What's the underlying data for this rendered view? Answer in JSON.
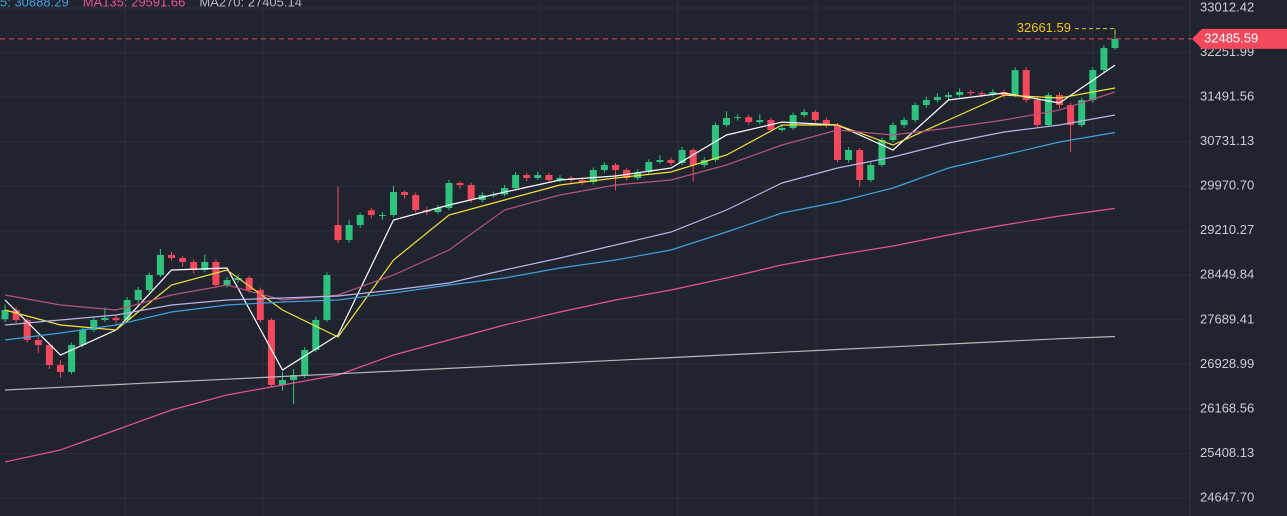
{
  "chart_data": {
    "type": "candlestick",
    "ylim": [
      24340,
      33150
    ],
    "yticks": [
      33012.42,
      32251.99,
      31491.56,
      30731.13,
      {
        "value": 29970.7,
        "label": "29970.70"
      },
      29210.27,
      28449.84,
      27689.41,
      26928.99,
      26168.56,
      25408.13,
      {
        "value": 24647.7,
        "label": "24647.70"
      }
    ],
    "grid": true,
    "up_color": "#2ec27e",
    "down_color": "#f4485c",
    "open": [
      27700,
      27857,
      27687,
      27345,
      27260,
      26918,
      26799,
      27260,
      27516,
      27687,
      27721,
      27687,
      28028,
      28199,
      28455,
      28797,
      28745,
      28677,
      28540,
      28677,
      28284,
      28369,
      28403,
      28199,
      27687,
      26577,
      26662,
      26747,
      27175,
      27687,
      29308,
      29052,
      29308,
      29560,
      29479,
      29479,
      29871,
      29820,
      29564,
      29530,
      29599,
      30025,
      29991,
      29735,
      29820,
      29830,
      29940,
      30162,
      30111,
      30162,
      30076,
      30111,
      30076,
      30042,
      30247,
      30333,
      30247,
      30111,
      30213,
      30384,
      30418,
      30367,
      30589,
      30333,
      30418,
      31015,
      31135,
      31150,
      31066,
      31101,
      30930,
      30964,
      31186,
      31237,
      31101,
      31015,
      30418,
      30589,
      30076,
      30333,
      30759,
      31015,
      31101,
      31357,
      31442,
      31493,
      31527,
      31579,
      31560,
      31540,
      31579,
      31527,
      31954,
      31442,
      31015,
      31527,
      31357,
      31015,
      31442,
      31954,
      32330
    ],
    "high": [
      27950,
      27900,
      27720,
      27400,
      27300,
      27000,
      27300,
      27560,
      27740,
      27900,
      27780,
      28080,
      28250,
      28500,
      28900,
      28850,
      28780,
      28720,
      28800,
      28720,
      28420,
      28460,
      28440,
      28240,
      27720,
      26800,
      26850,
      27220,
      27740,
      28500,
      29960,
      29400,
      29520,
      29600,
      29530,
      29980,
      29900,
      29860,
      29620,
      29650,
      30080,
      30060,
      30030,
      29870,
      29880,
      29990,
      30210,
      30200,
      30220,
      30200,
      30160,
      30150,
      30120,
      30290,
      30380,
      30370,
      30280,
      30260,
      30430,
      30500,
      30460,
      30640,
      30620,
      30470,
      31060,
      31250,
      31200,
      31190,
      31200,
      31140,
      31010,
      31230,
      31290,
      31270,
      31140,
      31050,
      30640,
      30620,
      30380,
      30800,
      31060,
      31150,
      31400,
      31500,
      31560,
      31580,
      31640,
      31620,
      31600,
      31630,
      31620,
      32000,
      32000,
      31480,
      31570,
      31570,
      31400,
      31480,
      32000,
      32380,
      32661.59
    ],
    "low": [
      27650,
      27640,
      27300,
      27120,
      26850,
      26700,
      26760,
      27220,
      27480,
      27650,
      27620,
      27660,
      27980,
      28160,
      28420,
      28700,
      28600,
      28480,
      28500,
      28230,
      28240,
      28320,
      28150,
      27640,
      26540,
      26480,
      26250,
      26700,
      27140,
      27650,
      29000,
      29000,
      29260,
      29420,
      29400,
      29440,
      29760,
      29520,
      29480,
      29500,
      29560,
      29930,
      29690,
      29700,
      29780,
      29800,
      29900,
      30060,
      30080,
      30030,
      30040,
      30030,
      29990,
      30000,
      30200,
      29900,
      30070,
      30080,
      30180,
      30350,
      30320,
      30330,
      30050,
      30290,
      30380,
      30980,
      31090,
      31020,
      31030,
      30890,
      30900,
      30930,
      31150,
      31060,
      30970,
      30380,
      30370,
      29960,
      30040,
      30300,
      30720,
      30970,
      31060,
      31310,
      31400,
      31450,
      31490,
      31520,
      31490,
      31500,
      31480,
      31490,
      31400,
      30970,
      30980,
      31300,
      30560,
      30980,
      31400,
      31920,
      32300
    ],
    "close": [
      27857,
      27687,
      27345,
      27260,
      26918,
      26799,
      27260,
      27516,
      27687,
      27721,
      27687,
      28028,
      28199,
      28455,
      28797,
      28745,
      28677,
      28540,
      28677,
      28284,
      28369,
      28403,
      28199,
      27687,
      26577,
      26662,
      26747,
      27175,
      27687,
      28455,
      29052,
      29308,
      29479,
      29479,
      29479,
      29871,
      29820,
      29564,
      29530,
      29599,
      30025,
      29991,
      29735,
      29820,
      29830,
      29940,
      30162,
      30111,
      30162,
      30076,
      30111,
      30076,
      30042,
      30247,
      30333,
      30247,
      30111,
      30213,
      30384,
      30418,
      30367,
      30589,
      30333,
      30418,
      31015,
      31135,
      31150,
      31066,
      31101,
      30930,
      30964,
      31186,
      31237,
      31101,
      31015,
      30418,
      30589,
      30076,
      30333,
      30759,
      31015,
      31101,
      31357,
      31442,
      31493,
      31527,
      31579,
      31560,
      31540,
      31579,
      31527,
      31954,
      31442,
      31015,
      31527,
      31357,
      31015,
      31442,
      31954,
      32330,
      32485.59
    ],
    "series": [
      {
        "color": "#ffffff",
        "x": [
          0,
          5,
          10,
          15,
          20,
          25,
          30,
          35,
          40,
          45,
          50,
          55,
          60,
          65,
          70,
          75,
          80,
          85,
          90,
          95,
          100
        ],
        "values": [
          28028,
          27089,
          27516,
          28540,
          28574,
          26833,
          27431,
          29394,
          29650,
          29871,
          30076,
          30145,
          30281,
          30845,
          31066,
          31015,
          30589,
          31442,
          31562,
          31391,
          32039
        ]
      },
      {
        "color": "#f5e13a",
        "x": [
          0,
          5,
          10,
          15,
          20,
          25,
          30,
          35,
          40,
          45,
          50,
          55,
          60,
          65,
          70,
          75,
          80,
          85,
          90,
          95,
          100
        ],
        "values": [
          27857,
          27601,
          27516,
          28284,
          28540,
          27857,
          27396,
          28711,
          29479,
          29735,
          29991,
          30111,
          30213,
          30503,
          31015,
          31015,
          30674,
          31101,
          31527,
          31476,
          31647
        ]
      },
      {
        "color": "#b9537e",
        "x": [
          0,
          5,
          10,
          15,
          20,
          25,
          30,
          35,
          40,
          45,
          50,
          55,
          60,
          65,
          70,
          75,
          80,
          85,
          90,
          95,
          100
        ],
        "values": [
          28113,
          27943,
          27857,
          28113,
          28284,
          28028,
          28113,
          28455,
          28882,
          29564,
          29820,
          29991,
          30076,
          30333,
          30674,
          30930,
          30845,
          30964,
          31101,
          31271,
          31579
        ]
      },
      {
        "color": "#b7b4e8",
        "x": [
          0,
          5,
          10,
          15,
          20,
          25,
          30,
          35,
          40,
          45,
          50,
          55,
          60,
          65,
          70,
          75,
          80,
          85,
          90,
          95,
          100
        ],
        "values": [
          27601,
          27687,
          27772,
          27943,
          28028,
          28062,
          28096,
          28199,
          28318,
          28540,
          28745,
          28967,
          29189,
          29564,
          30025,
          30281,
          30469,
          30708,
          30896,
          31015,
          31186
        ]
      },
      {
        "color": "#3fa0e0",
        "legend": "5: 30888.29",
        "x": [
          0,
          5,
          10,
          15,
          20,
          25,
          30,
          35,
          40,
          45,
          50,
          55,
          60,
          65,
          70,
          75,
          80,
          85,
          90,
          95,
          100
        ],
        "values": [
          27345,
          27465,
          27601,
          27823,
          27943,
          27994,
          28028,
          28147,
          28284,
          28403,
          28574,
          28711,
          28882,
          29189,
          29513,
          29701,
          29940,
          30281,
          30503,
          30725,
          30888.29
        ]
      },
      {
        "color": "#e9509c",
        "legend": "MA135: 29591.66",
        "x": [
          0,
          5,
          10,
          15,
          20,
          25,
          30,
          35,
          40,
          45,
          50,
          55,
          60,
          65,
          70,
          75,
          80,
          85,
          90,
          95,
          100
        ],
        "values": [
          25263,
          25468,
          25809,
          26150,
          26407,
          26577,
          26747,
          27089,
          27345,
          27601,
          27823,
          28028,
          28199,
          28403,
          28627,
          28796,
          28950,
          29138,
          29308,
          29462,
          29591.66
        ]
      },
      {
        "color": "#b8b8b8",
        "legend": "MA270: 27405.14",
        "x": [
          0,
          5,
          10,
          15,
          20,
          25,
          30,
          35,
          40,
          45,
          50,
          55,
          60,
          65,
          70,
          75,
          80,
          85,
          90,
          95,
          100
        ],
        "values": [
          26492,
          26538,
          26584,
          26630,
          26676,
          26722,
          26768,
          26814,
          26860,
          26906,
          26952,
          26999,
          27045,
          27091,
          27137,
          27183,
          27229,
          27275,
          27321,
          27367,
          27405.14
        ]
      }
    ],
    "high_price": 32661.59,
    "high_color": "#f5c518",
    "last_price": 32485.59,
    "last_color": "#f4485c"
  }
}
